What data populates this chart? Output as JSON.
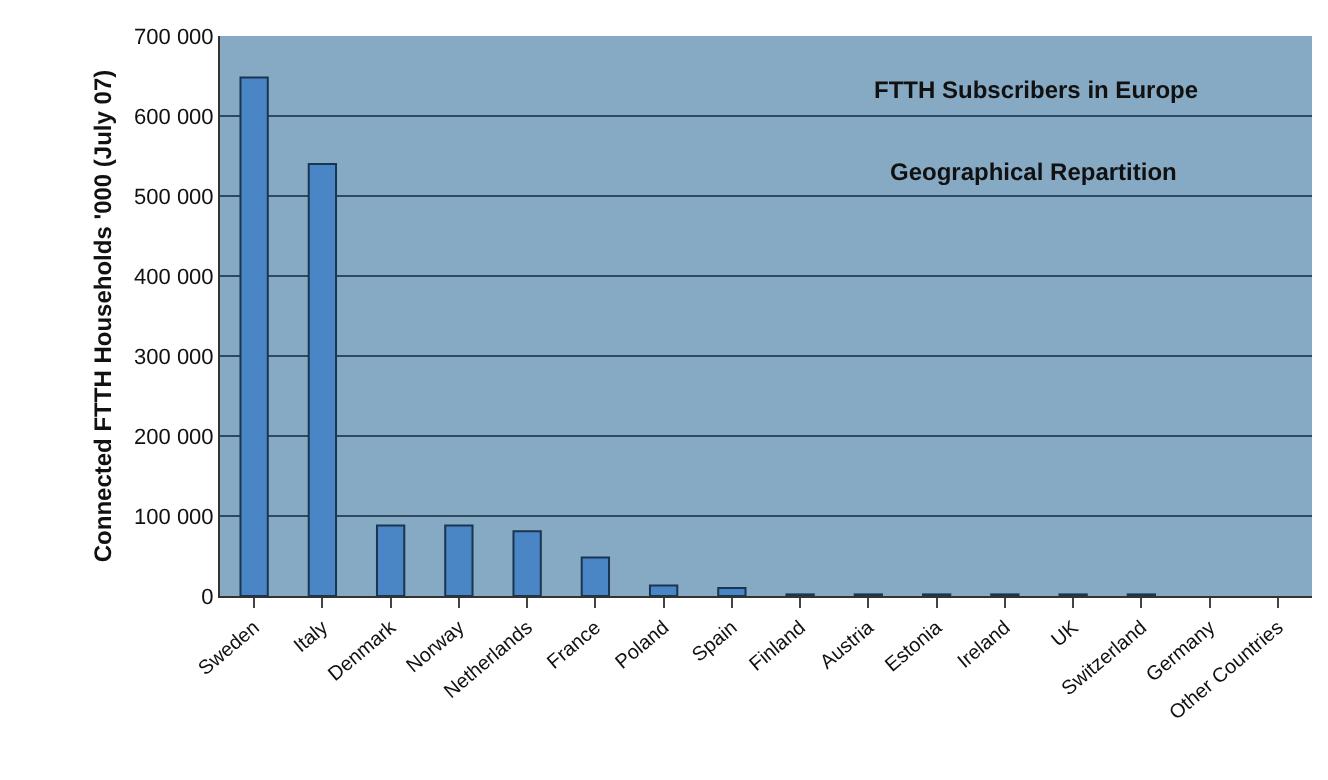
{
  "chart_data": {
    "type": "bar",
    "title": "FTTH Subscribers in Europe",
    "subtitle": "Geographical Repartition",
    "ylabel": "Connected FTTH Households '000 (July 07)",
    "categories": [
      "Sweden",
      "Italy",
      "Denmark",
      "Norway",
      "Netherlands",
      "France",
      "Poland",
      "Spain",
      "Finland",
      "Austria",
      "Estonia",
      "Ireland",
      "UK",
      "Switzerland",
      "Germany",
      "Other Countries"
    ],
    "values": [
      648000,
      540000,
      88000,
      88000,
      81000,
      48000,
      13000,
      10000,
      2000,
      2000,
      2000,
      2000,
      2000,
      2000,
      null,
      null
    ],
    "color": "#4a86c5",
    "ylim": [
      0,
      700000
    ],
    "yticks": [
      {
        "value": 0,
        "label": "0"
      },
      {
        "value": 100000,
        "label": "100 000"
      },
      {
        "value": 200000,
        "label": "200 000"
      },
      {
        "value": 300000,
        "label": "300 000"
      },
      {
        "value": 400000,
        "label": "400 000"
      },
      {
        "value": 500000,
        "label": "500 000"
      },
      {
        "value": 600000,
        "label": "600 000"
      },
      {
        "value": 700000,
        "label": "700 000"
      }
    ],
    "grid": true
  }
}
